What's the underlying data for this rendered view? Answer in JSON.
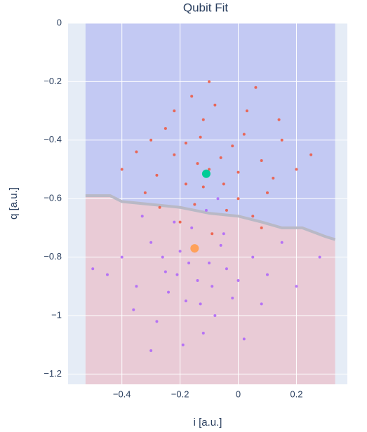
{
  "chart_data": {
    "type": "scatter",
    "title": "Qubit Fit",
    "x_label": "i [a.u.]",
    "y_label": "q [a.u.]",
    "xlim": [
      -0.585,
      0.375
    ],
    "ylim": [
      -1.235,
      0
    ],
    "xticks": [
      {
        "value": -0.4,
        "label": "−0.4"
      },
      {
        "value": -0.2,
        "label": "−0.2"
      },
      0,
      {
        "value": 0.2,
        "label": "0.2"
      }
    ],
    "yticks": [
      0,
      {
        "value": -0.2,
        "label": "−0.2"
      },
      {
        "value": -0.4,
        "label": "−0.4"
      },
      {
        "value": -0.6,
        "label": "−0.6"
      },
      {
        "value": -0.8,
        "label": "−0.8"
      },
      {
        "value": -1,
        "label": "−1"
      },
      {
        "value": -1.2,
        "label": "−1.2"
      }
    ],
    "grid": true,
    "regions": {
      "x_extent": [
        -0.525,
        0.333
      ],
      "upper_color": "#c3c9f3",
      "lower_color": "#e9cbd6",
      "boundary_color": "#b9b9c6",
      "boundary": {
        "x": [
          -0.525,
          -0.44,
          -0.4,
          -0.3,
          -0.2,
          -0.1,
          0.0,
          0.08,
          0.15,
          0.22,
          0.3,
          0.333
        ],
        "y": [
          -0.59,
          -0.59,
          -0.61,
          -0.62,
          -0.63,
          -0.65,
          -0.66,
          -0.68,
          -0.7,
          -0.7,
          -0.73,
          -0.74
        ]
      }
    },
    "series": [
      {
        "color": "#ef553b",
        "x": [
          -0.1,
          -0.22,
          0.02,
          -0.15,
          -0.05,
          -0.28,
          0.08,
          -0.12,
          -0.18,
          0.0,
          -0.25,
          0.12,
          -0.08,
          -0.32,
          0.05,
          -0.14,
          -0.02,
          -0.2,
          0.15,
          -0.35,
          -0.09,
          0.03,
          -0.16,
          0.2,
          -0.27,
          -0.06,
          0.1,
          -0.12,
          -0.22,
          0.06,
          -0.04,
          -0.3,
          0.14,
          -0.18,
          -0.1,
          0.25,
          -0.4,
          0.0,
          -0.13,
          0.08
        ],
        "values": [
          -0.5,
          -0.45,
          -0.38,
          -0.62,
          -0.55,
          -0.52,
          -0.47,
          -0.33,
          -0.41,
          -0.6,
          -0.36,
          -0.53,
          -0.28,
          -0.58,
          -0.66,
          -0.48,
          -0.42,
          -0.68,
          -0.4,
          -0.44,
          -0.72,
          -0.3,
          -0.25,
          -0.5,
          -0.63,
          -0.46,
          -0.58,
          -0.56,
          -0.3,
          -0.22,
          -0.64,
          -0.4,
          -0.33,
          -0.55,
          -0.2,
          -0.45,
          -0.5,
          -0.51,
          -0.39,
          -0.7
        ]
      },
      {
        "color": "#ab63fa",
        "x": [
          -0.15,
          -0.25,
          -0.05,
          -0.18,
          -0.3,
          0.0,
          -0.1,
          -0.22,
          -0.35,
          -0.08,
          0.05,
          -0.28,
          -0.14,
          -0.4,
          -0.02,
          -0.2,
          0.1,
          -0.12,
          -0.33,
          -0.06,
          -0.24,
          0.02,
          -0.16,
          -0.45,
          -0.09,
          0.15,
          -0.26,
          -0.19,
          -0.04,
          -0.36,
          -0.11,
          0.08,
          -0.21,
          -0.5,
          -0.13,
          0.2,
          -0.3,
          -0.07,
          -0.17,
          0.28
        ],
        "values": [
          -0.78,
          -0.85,
          -0.72,
          -0.95,
          -0.75,
          -0.88,
          -0.82,
          -0.68,
          -0.9,
          -1.0,
          -0.8,
          -1.02,
          -0.88,
          -0.8,
          -0.94,
          -0.78,
          -0.86,
          -1.06,
          -0.66,
          -0.76,
          -0.92,
          -1.08,
          -0.7,
          -0.86,
          -0.9,
          -0.75,
          -0.8,
          -1.1,
          -0.84,
          -0.98,
          -0.64,
          -0.96,
          -0.86,
          -0.84,
          -0.96,
          -0.9,
          -1.12,
          -0.6,
          -0.82,
          -0.8
        ]
      },
      {
        "color": "#00cc96",
        "size": "large",
        "x": [
          -0.11
        ],
        "values": [
          -0.515
        ]
      },
      {
        "color": "#ffa15a",
        "size": "large",
        "x": [
          -0.15
        ],
        "values": [
          -0.77
        ]
      }
    ]
  }
}
